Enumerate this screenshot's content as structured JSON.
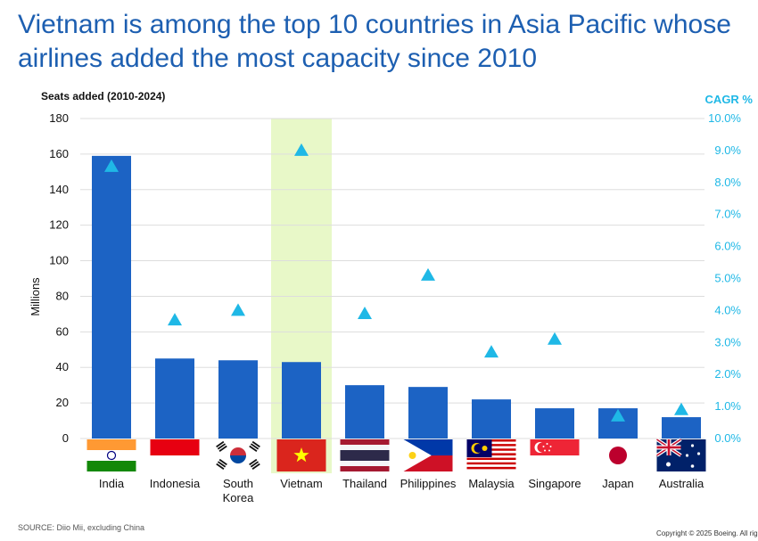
{
  "title": "Vietnam is among the top 10 countries in Asia Pacific whose airlines added the most capacity since 2010",
  "footer": {
    "source": "SOURCE: Diio Mii, excluding China",
    "copyright": "Copyright © 2025 Boeing. All rig"
  },
  "colors": {
    "title": "#1d5fb1",
    "bar": "#1c63c4",
    "cagr": "#1fb8e6",
    "highlight": "#e8f8c8",
    "grid": "#dddddd"
  },
  "chart_data": {
    "type": "bar",
    "title": "Seats added (2010-2024)",
    "ylabel": "Millions",
    "y2label": "CAGR %",
    "ylim": [
      0,
      180
    ],
    "yticks": [
      0,
      20,
      40,
      60,
      80,
      100,
      120,
      140,
      160,
      180
    ],
    "y2lim": [
      0,
      10
    ],
    "y2ticks": [
      "0.0%",
      "1.0%",
      "2.0%",
      "3.0%",
      "4.0%",
      "5.0%",
      "6.0%",
      "7.0%",
      "8.0%",
      "9.0%",
      "10.0%"
    ],
    "categories": [
      "India",
      "Indonesia",
      "South Korea",
      "Vietnam",
      "Thailand",
      "Philippines",
      "Malaysia",
      "Singapore",
      "Japan",
      "Australia"
    ],
    "category_lines": [
      [
        "India"
      ],
      [
        "Indonesia"
      ],
      [
        "South",
        "Korea"
      ],
      [
        "Vietnam"
      ],
      [
        "Thailand"
      ],
      [
        "Philippines"
      ],
      [
        "Malaysia"
      ],
      [
        "Singapore"
      ],
      [
        "Japan"
      ],
      [
        "Australia"
      ]
    ],
    "highlight_category": "Vietnam",
    "series": [
      {
        "name": "Seats added (millions)",
        "type": "bar",
        "values": [
          159,
          45,
          44,
          43,
          30,
          29,
          22,
          17,
          17,
          12
        ]
      },
      {
        "name": "CAGR %",
        "type": "scatter",
        "marker": "triangle",
        "values": [
          8.5,
          3.7,
          4.0,
          9.0,
          3.9,
          5.1,
          2.7,
          3.1,
          0.7,
          0.9
        ]
      }
    ]
  }
}
